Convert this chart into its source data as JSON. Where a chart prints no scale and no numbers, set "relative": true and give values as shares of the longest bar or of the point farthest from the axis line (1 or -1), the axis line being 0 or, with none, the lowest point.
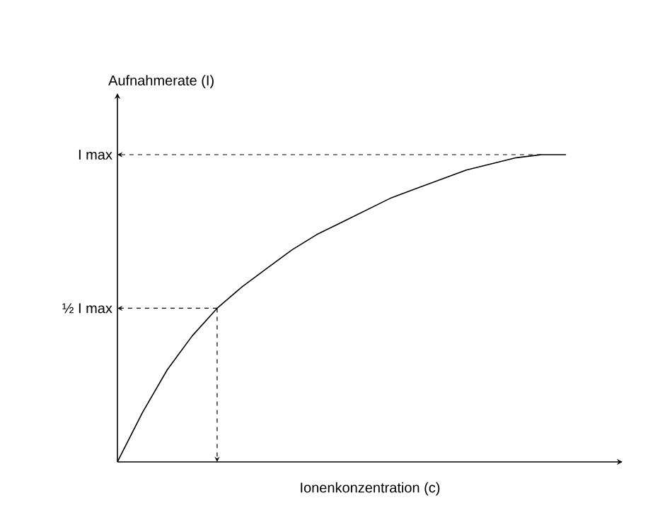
{
  "chart_data": {
    "type": "line",
    "xlabel": "Ionenkonzentration (c)",
    "ylabel": "Aufnahmerate (I)",
    "categories": [
      null,
      null,
      null,
      null,
      null,
      null,
      null,
      null,
      null,
      null,
      null,
      null,
      null,
      null,
      null,
      null,
      null,
      null,
      null
    ],
    "values": [
      0,
      0.16,
      0.3,
      0.41,
      0.5,
      0.57,
      0.63,
      0.69,
      0.74,
      0.78,
      0.82,
      0.86,
      0.89,
      0.92,
      0.95,
      0.97,
      0.99,
      1.0,
      1.0
    ],
    "color": "#000000",
    "relative": true,
    "grid": false,
    "marker": "none",
    "line_style": "solid",
    "ref_lines": [
      {
        "axis": "y",
        "value": 1,
        "label": "I max",
        "line_style": "dashed"
      },
      {
        "axis": "y",
        "value": 0.5,
        "label": "½ I max",
        "line_style": "dashed"
      }
    ]
  }
}
